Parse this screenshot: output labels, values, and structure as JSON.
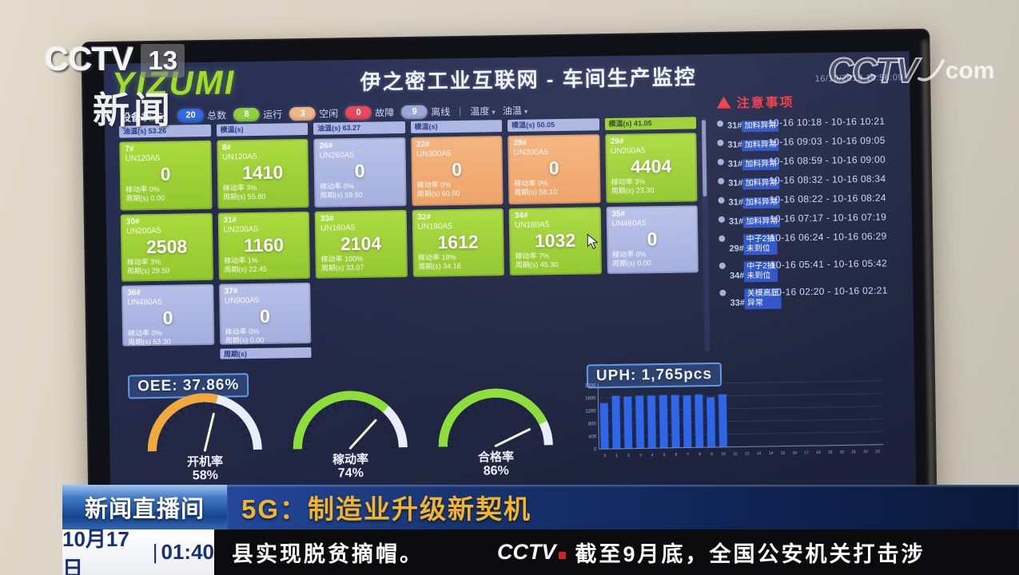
{
  "broadcast": {
    "channel": {
      "name": "CCTV",
      "number": "13",
      "sub": "新闻"
    },
    "watermark": {
      "cctv": "CCTV",
      "com": "com"
    },
    "banner": {
      "program": "新闻直播间",
      "headline": "5G：制造业升级新契机"
    },
    "ticker": {
      "date": "10月17日",
      "divider": "|",
      "time": "01:40",
      "text_left": "县实现脱贫摘帽。",
      "logo": "CCTV",
      "text_right": "截至9月底，全国公安机关打击涉"
    }
  },
  "dashboard": {
    "logo": "YIZUMI",
    "title": "伊之密工业互联网 - 车间生产监控",
    "timestamp": "16/10/2019 10:56:09",
    "status_bar": {
      "label": "设备状态:",
      "badges": [
        {
          "count": "20",
          "label": "总数",
          "color": "#2e6be6"
        },
        {
          "count": "8",
          "label": "运行",
          "color": "#8ed23e"
        },
        {
          "count": "3",
          "label": "空闲",
          "color": "#f0b488"
        },
        {
          "count": "0",
          "label": "故障",
          "color": "#e8445a"
        },
        {
          "count": "9",
          "label": "离线",
          "color": "#98a6d8"
        }
      ],
      "divider": "|",
      "filters": [
        {
          "label": "温度",
          "caret": "▾"
        },
        {
          "label": "油温",
          "caret": "▾"
        }
      ]
    },
    "grid": {
      "column_headers": [
        {
          "text": "油温(s) 53.26",
          "state": "offline"
        },
        {
          "text": "模温(s)",
          "state": "offline"
        },
        {
          "text": "油温(s) 63.27",
          "state": "offline"
        },
        {
          "text": "模温(s)",
          "state": "offline"
        },
        {
          "text": "模温(s) 50.05",
          "state": "offline"
        },
        {
          "text": "模温(s) 41.05",
          "state": "running"
        }
      ],
      "rows": [
        [
          {
            "id": "7#",
            "model": "UN120A5",
            "count": "0",
            "rate": "稼动率 0%",
            "cycle": "周期(s) 0.00",
            "state": "running"
          },
          {
            "id": "8#",
            "model": "UN120A5",
            "count": "1410",
            "rate": "稼动率 3%",
            "cycle": "周期(s) 55.80",
            "state": "running"
          },
          {
            "id": "26#",
            "model": "UN260A5",
            "count": "0",
            "rate": "稼动率 0%",
            "cycle": "周期(s) 59.50",
            "state": "offline"
          },
          {
            "id": "22#",
            "model": "UN300A5",
            "count": "0",
            "rate": "稼动率 0%",
            "cycle": "周期(s) 60.50",
            "state": "idle"
          },
          {
            "id": "28#",
            "model": "UN300A5",
            "count": "0",
            "rate": "稼动率 0%",
            "cycle": "周期(s) 58.10",
            "state": "idle"
          },
          {
            "id": "29#",
            "model": "UN200A5",
            "count": "4404",
            "rate": "稼动率 3%",
            "cycle": "周期(s) 23.30",
            "state": "running"
          }
        ],
        [
          {
            "id": "30#",
            "model": "UN200A5",
            "count": "2508",
            "rate": "稼动率 3%",
            "cycle": "周期(s) 29.50",
            "state": "running"
          },
          {
            "id": "31#",
            "model": "UN200A5",
            "count": "1160",
            "rate": "稼动率 1%",
            "cycle": "周期(s) 22.45",
            "state": "running"
          },
          {
            "id": "33#",
            "model": "UN160A5",
            "count": "2104",
            "rate": "稼动率 100%",
            "cycle": "周期(s) 33.07",
            "state": "running"
          },
          {
            "id": "32#",
            "model": "UN180A5",
            "count": "1612",
            "rate": "稼动率 18%",
            "cycle": "周期(s) 34.16",
            "state": "running"
          },
          {
            "id": "34#",
            "model": "UN180A5",
            "count": "1032",
            "rate": "稼动率 7%",
            "cycle": "周期(s) 45.30",
            "state": "running"
          },
          {
            "id": "35#",
            "model": "UN460A5",
            "count": "0",
            "rate": "稼动率 0%",
            "cycle": "周期(s) 0.00",
            "state": "offline"
          }
        ],
        [
          {
            "id": "36#",
            "model": "UN480A5",
            "count": "0",
            "rate": "稼动率 0%",
            "cycle": "周期(s) 53.30",
            "state": "offline"
          },
          {
            "id": "37#",
            "model": "UN900A5",
            "count": "0",
            "rate": "稼动率 0%",
            "cycle": "周期(s) 0.00",
            "state": "offline"
          }
        ]
      ],
      "partial_header": {
        "text": "周期(s)",
        "state": "offline"
      }
    },
    "notices": {
      "title": "注意事项",
      "items": [
        {
          "machine": "31#",
          "issue": "加料异常",
          "time": "10-16 10:18 - 10-16 10:21"
        },
        {
          "machine": "31#",
          "issue": "加料异常",
          "time": "10-16 09:03 - 10-16 09:05"
        },
        {
          "machine": "31#",
          "issue": "加料异常",
          "time": "10-16 08:59 - 10-16 09:00"
        },
        {
          "machine": "31#",
          "issue": "加料异常",
          "time": "10-16 08:32 - 10-16 08:34"
        },
        {
          "machine": "31#",
          "issue": "加料异常",
          "time": "10-16 08:22 - 10-16 08:24"
        },
        {
          "machine": "31#",
          "issue": "加料异常",
          "time": "10-16 07:17 - 10-16 07:19"
        },
        {
          "machine": "29#",
          "issue": "中子2抽\n未到位",
          "time": "10-16 06:24 - 10-16 06:29"
        },
        {
          "machine": "34#",
          "issue": "中子2抽\n未到位",
          "time": "10-16 05:41 - 10-16 05:42"
        },
        {
          "machine": "33#",
          "issue": "关模高压\n异常",
          "time": "10-16 02:20 - 10-16 02:21"
        }
      ]
    },
    "metrics": {
      "oee_label": "OEE: 37.86%",
      "uph_label": "UPH: 1,765pcs"
    }
  },
  "chart_data": [
    {
      "type": "gauge",
      "title": "开机率",
      "value": 58,
      "unit": "%",
      "min": 0,
      "max": 100,
      "arc_color": "#f2a93c",
      "rest_color": "#e9eefb"
    },
    {
      "type": "gauge",
      "title": "稼动率",
      "value": 74,
      "unit": "%",
      "min": 0,
      "max": 100,
      "arc_color": "#8ede3a",
      "rest_color": "#e9eefb"
    },
    {
      "type": "gauge",
      "title": "合格率",
      "value": 86,
      "unit": "%",
      "min": 0,
      "max": 100,
      "arc_color": "#8ede3a",
      "rest_color": "#e9eefb"
    },
    {
      "type": "bar",
      "title": "UPH: 1,765pcs",
      "x_categories": [
        "0",
        "1",
        "2",
        "3",
        "4",
        "5",
        "6",
        "7",
        "8",
        "9",
        "10",
        "11",
        "12",
        "13",
        "14",
        "15",
        "16",
        "17",
        "18",
        "19",
        "20",
        "21",
        "22",
        "23"
      ],
      "values": [
        1440,
        1660,
        1630,
        1650,
        1650,
        1660,
        1655,
        1640,
        1660,
        1565,
        1655
      ],
      "ylim": [
        0,
        2000
      ],
      "yticks": [
        0,
        400,
        800,
        1200,
        1600,
        2000
      ],
      "bar_color": "#2e66e8",
      "grid": true,
      "legend_position": "none"
    }
  ]
}
